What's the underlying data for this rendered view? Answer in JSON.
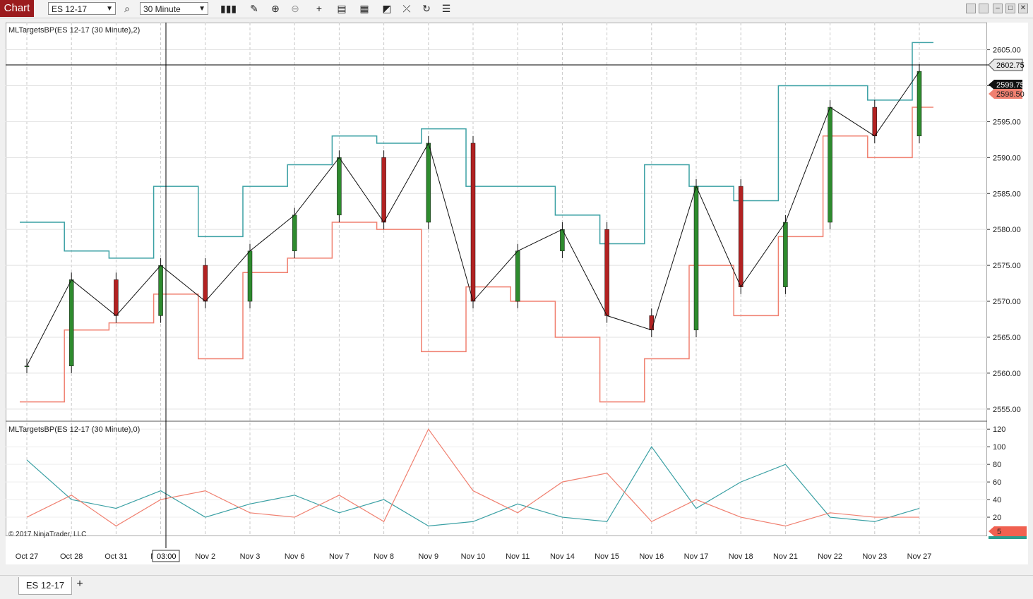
{
  "toolbar": {
    "chart_tab": "Chart",
    "instrument": "ES 12-17",
    "interval": "30 Minute",
    "icons": [
      "bars-type-icon",
      "draw-pencil-icon",
      "zoom-in-icon",
      "zoom-out-icon",
      "crosshair-icon",
      "data-box-icon",
      "strategies-icon",
      "indicators-icon",
      "drawing-tools-icon",
      "reload-icon",
      "properties-icon"
    ]
  },
  "window_controls": [
    "snap-icon",
    "snap-icon-2",
    "minimize-icon",
    "maximize-icon",
    "close-icon"
  ],
  "panels": {
    "price": {
      "label": "MLTargetsBP(ES 12-17 (30 Minute),2)",
      "y_ticks": [
        "2605.00",
        "2600.00",
        "2595.00",
        "2590.00",
        "2585.00",
        "2580.00",
        "2575.00",
        "2570.00",
        "2565.00",
        "2560.00",
        "2555.00"
      ],
      "crosshair_price": "2602.75",
      "last_price": "2599.75",
      "lower_target": "2598.50"
    },
    "indicator": {
      "label": "MLTargetsBP(ES 12-17 (30 Minute),0)",
      "y_ticks": [
        "120",
        "100",
        "80",
        "60",
        "40",
        "20"
      ],
      "last_value": "5"
    }
  },
  "x_axis": {
    "labels": [
      "Oct 27",
      "Oct 28",
      "Oct 31",
      "Nov 1",
      "Nov 2",
      "Nov 3",
      "Nov 6",
      "Nov 7",
      "Nov 8",
      "Nov 9",
      "Nov 10",
      "Nov 11",
      "Nov 14",
      "Nov 15",
      "Nov 16",
      "Nov 17",
      "Nov 18",
      "Nov 21",
      "Nov 22",
      "Nov 23",
      "Nov 27"
    ],
    "crosshair_time": "03:00"
  },
  "copyright": "© 2017 NinjaTrader, LLC",
  "bottom_tabs": {
    "active": "ES 12-17",
    "add": "+"
  },
  "colors": {
    "target_high": "#3aa0a4",
    "target_low": "#f08070",
    "up_candle": "#2e8b2e",
    "down_candle": "#b22222",
    "chart_tab": "#9b1b1e"
  },
  "chart_data": [
    {
      "type": "line",
      "title": "",
      "ylim": [
        2554,
        2608
      ],
      "categories": [
        "Oct 27",
        "Oct 28",
        "Oct 31",
        "Nov 1",
        "Nov 2",
        "Nov 3",
        "Nov 6",
        "Nov 7",
        "Nov 8",
        "Nov 9",
        "Nov 10",
        "Nov 11",
        "Nov 14",
        "Nov 15",
        "Nov 16",
        "Nov 17",
        "Nov 18",
        "Nov 21",
        "Nov 22",
        "Nov 23",
        "Nov 27"
      ],
      "series": [
        {
          "values": [
            2561,
            2573,
            2568,
            2575,
            2570,
            2577,
            2582,
            2590,
            2581,
            2592,
            2570,
            2577,
            2580,
            2568,
            2566,
            2586,
            2572,
            2581,
            2597,
            2593,
            2602
          ]
        },
        {
          "values": [
            2581,
            2577,
            2576,
            2586,
            2579,
            2586,
            2589,
            2593,
            2592,
            2594,
            2586,
            2586,
            2582,
            2578,
            2589,
            2586,
            2584,
            2600,
            2600,
            2598,
            2606
          ]
        },
        {
          "values": [
            2556,
            2566,
            2567,
            2571,
            2562,
            2574,
            2576,
            2581,
            2580,
            2563,
            2572,
            2570,
            2565,
            2556,
            2562,
            2575,
            2568,
            2579,
            2593,
            2590,
            2597
          ]
        }
      ]
    },
    {
      "type": "line",
      "title": "",
      "ylim": [
        0,
        125
      ],
      "categories": [
        "Oct 27",
        "Oct 28",
        "Oct 31",
        "Nov 1",
        "Nov 2",
        "Nov 3",
        "Nov 6",
        "Nov 7",
        "Nov 8",
        "Nov 9",
        "Nov 10",
        "Nov 11",
        "Nov 14",
        "Nov 15",
        "Nov 16",
        "Nov 17",
        "Nov 18",
        "Nov 21",
        "Nov 22",
        "Nov 23",
        "Nov 27"
      ],
      "series": [
        {
          "values": [
            85,
            40,
            30,
            50,
            20,
            35,
            45,
            25,
            40,
            10,
            15,
            35,
            20,
            15,
            100,
            30,
            60,
            80,
            20,
            15,
            30
          ]
        },
        {
          "values": [
            20,
            45,
            10,
            40,
            50,
            25,
            20,
            45,
            15,
            120,
            50,
            25,
            60,
            70,
            15,
            40,
            20,
            10,
            25,
            20,
            20
          ]
        }
      ]
    }
  ]
}
